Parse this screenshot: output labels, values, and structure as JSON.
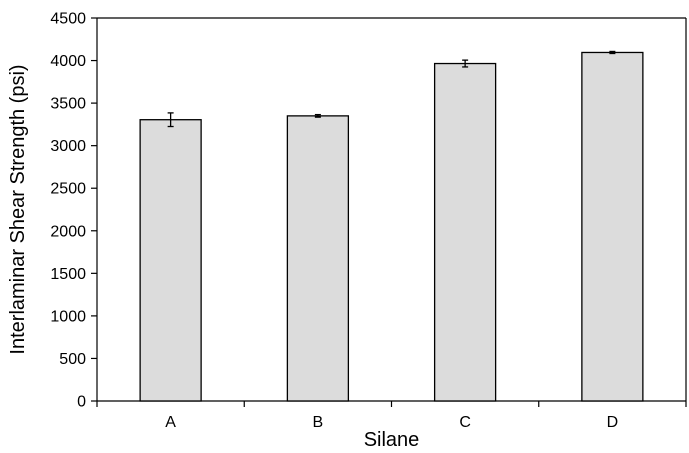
{
  "chart_data": {
    "type": "bar",
    "title": "",
    "xlabel": "Silane",
    "ylabel": "Interlaminar Shear Strength (psi)",
    "categories": [
      "A",
      "B",
      "C",
      "D"
    ],
    "values": [
      3305,
      3350,
      3965,
      4095
    ],
    "error": [
      80,
      15,
      40,
      12
    ],
    "ylim": [
      0,
      4500
    ],
    "yticks": [
      0,
      500,
      1000,
      1500,
      2000,
      2500,
      3000,
      3500,
      4000,
      4500
    ],
    "ytick_labels": [
      "0",
      "500",
      "1000",
      "1500",
      "2000",
      "2500",
      "3000",
      "3500",
      "4000",
      "4500"
    ],
    "grid": false,
    "legend": "none",
    "colors": {
      "bar_fill": "#dcdcdc",
      "bar_stroke": "#000000",
      "axis": "#000000"
    }
  }
}
